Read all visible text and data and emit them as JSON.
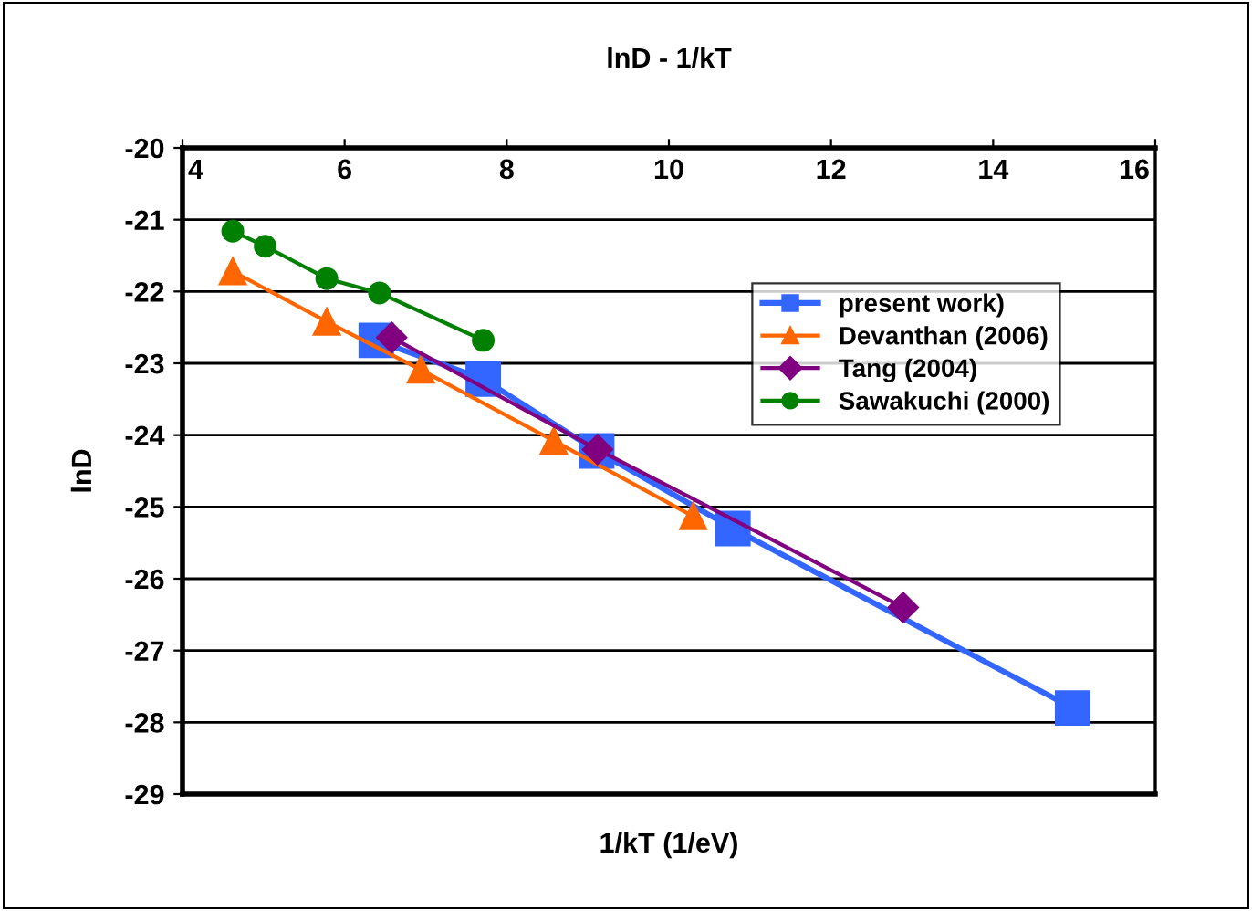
{
  "chart_data": {
    "type": "line",
    "title": "lnD - 1/kT",
    "xlabel": "1/kT (1/eV)",
    "ylabel": "lnD",
    "xlim": [
      4,
      16
    ],
    "xticks": [
      4,
      6,
      8,
      10,
      12,
      14,
      16
    ],
    "ylim": [
      -29,
      -20
    ],
    "yticks": [
      -29,
      -28,
      -27,
      -26,
      -25,
      -24,
      -23,
      -22,
      -21,
      -20
    ],
    "grid": "y",
    "legend": "top right",
    "series": [
      {
        "name": "present work)",
        "color": "#3366ff",
        "marker": "square",
        "x": [
          6.39,
          7.71,
          9.11,
          10.79,
          14.98
        ],
        "values": [
          -22.68,
          -23.22,
          -24.22,
          -25.3,
          -27.8
        ]
      },
      {
        "name": "Devanthan (2006)",
        "color": "#ff6600",
        "marker": "triangle",
        "x": [
          4.62,
          5.78,
          6.94,
          8.58,
          10.3
        ],
        "values": [
          -21.72,
          -22.42,
          -23.09,
          -24.08,
          -25.13
        ]
      },
      {
        "name": "Tang (2004)",
        "color": "#800080",
        "marker": "diamond",
        "x": [
          6.58,
          9.12,
          12.89
        ],
        "values": [
          -22.64,
          -24.2,
          -26.4
        ]
      },
      {
        "name": "Sawakuchi (2000)",
        "color": "#008000",
        "marker": "circle",
        "x": [
          4.62,
          5.02,
          5.78,
          6.43,
          7.71
        ],
        "values": [
          -21.16,
          -21.37,
          -21.82,
          -22.02,
          -22.68
        ]
      }
    ]
  }
}
